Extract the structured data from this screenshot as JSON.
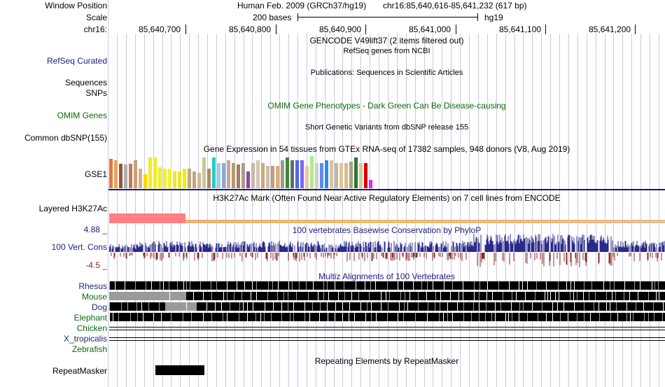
{
  "header": {
    "window_position_label": "Window Position",
    "scale_label": "Scale",
    "chrom_label": "chr16:",
    "assembly_text": "Human Feb. 2009 (GRCh37/hg19)",
    "position_text": "chr16:85,640,616-85,641,232 (617 bp)",
    "scale_text": "200 bases",
    "db_text": "hg19",
    "ticks": [
      "85,640,700",
      "85,640,800",
      "85,640,900",
      "85,641,000",
      "85,641,100",
      "85,641,200"
    ]
  },
  "tracks": {
    "gencode_title": "GENCODE V49lift37 (2 items filtered out)",
    "refseq_label": "RefSeq Curated",
    "refseq_title": "RefSeq genes from NCBI",
    "publications_title": "Publications: Sequences in Scientific Articles",
    "sequences_label": "Sequences",
    "snps_label": "SNPs",
    "omim_label": "OMIM Genes",
    "omim_title": "OMIM Gene Phenotypes - Dark Green Can Be Disease-causing",
    "dbsnp_title": "Short Genetic Variants from dbSNP release 155",
    "dbsnp_label": "Common dbSNP(155)",
    "gtex_title": "Gene Expression in 54 tissues from GTEx RNA-seq of 17382 samples, 948 donors (V8, Aug 2019)",
    "gtex_label": "GSE1",
    "h3k27ac_title": "H3K27Ac Mark (Often Found Near Active Regulatory Elements) on 7 cell lines from ENCODE",
    "h3k27ac_label": "Layered H3K27Ac",
    "cons_max": "4.88 _",
    "cons_label": "100 Vert. Cons",
    "cons_min": "-4.5 _",
    "cons_title": "100 vertebrates Basewise Conservation by PhyloP",
    "multiz_title": "Multiz Alignments of 100 Vertebrates",
    "species": [
      "Rhesus",
      "Mouse",
      "Dog",
      "Elephant",
      "Chicken",
      "X_tropicalis",
      "Zebrafish"
    ],
    "repeat_title": "Repeating Elements by RepeatMasker",
    "repeat_label": "RepeatMasker"
  },
  "gtex_bar_colors": [
    "#e07b3e",
    "#f0a05a",
    "#a0522d",
    "#b0b0b0",
    "#c07a5a",
    "#c8a07a",
    "#d4b08a",
    "#ffd700",
    "#eeee22",
    "#eeee22",
    "#eeee22",
    "#f5f030",
    "#f5f030",
    "#e8e830",
    "#e8e830",
    "#f0f000",
    "#c4a484",
    "#c4a484",
    "#d0b898",
    "#ccc890",
    "#b48a6a",
    "#22cccc",
    "#a0d0d0",
    "#90a8d8",
    "#c8a890",
    "#b89878",
    "#a08060",
    "#b49a84",
    "#8e44ad",
    "#c8b8a8",
    "#d4c4b4",
    "#c8a880",
    "#d0c0a0",
    "#b8a080",
    "#d8b070",
    "#a09890",
    "#3a8a3a",
    "#6a6a6a",
    "#4a6aee",
    "#7a6aee",
    "#f0c0b0",
    "#aaee88",
    "#d0d0d0",
    "#5a8aee",
    "#2a8aee",
    "#d4c4a0",
    "#c8b890",
    "#d8c8a0",
    "#e0b890",
    "#b0a080",
    "#2a7a2a",
    "#d4c8a0",
    "#dd0000",
    "#ee22ee"
  ],
  "gtex_bar_heights": [
    42,
    40,
    35,
    34,
    35,
    40,
    28,
    20,
    44,
    44,
    30,
    28,
    28,
    24,
    24,
    28,
    28,
    24,
    22,
    44,
    28,
    44,
    36,
    36,
    40,
    36,
    34,
    36,
    24,
    36,
    40,
    36,
    32,
    32,
    32,
    40,
    44,
    40,
    40,
    40,
    32,
    46,
    36,
    36,
    40,
    40,
    36,
    36,
    36,
    38,
    44,
    36,
    36,
    12
  ]
}
